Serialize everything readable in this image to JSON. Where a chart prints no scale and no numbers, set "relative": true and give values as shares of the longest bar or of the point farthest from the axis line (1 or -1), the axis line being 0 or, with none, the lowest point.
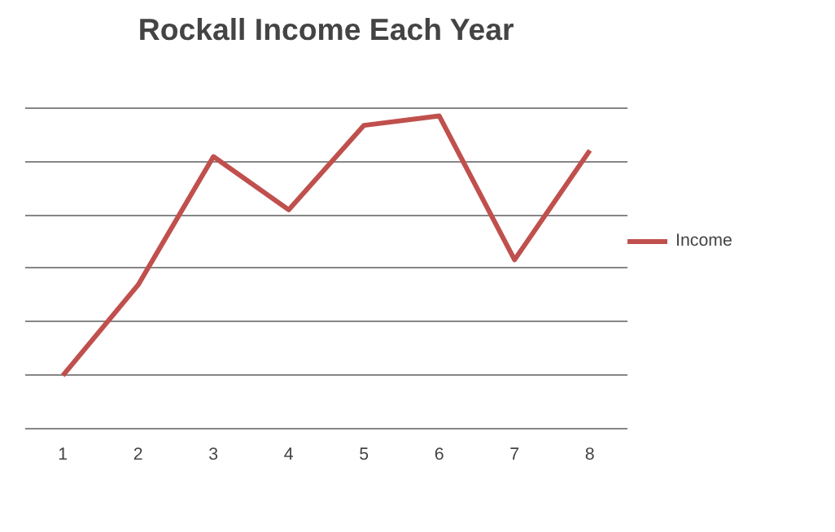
{
  "chart_data": {
    "type": "line",
    "title": "Rockall Income Each Year",
    "categories": [
      "1",
      "2",
      "3",
      "4",
      "5",
      "6",
      "7",
      "8"
    ],
    "relative": true,
    "series": [
      {
        "name": "Income",
        "color": "#c0504d",
        "values": [
          0.17,
          0.46,
          0.87,
          0.7,
          0.97,
          1,
          0.54,
          0.89
        ]
      }
    ],
    "grid": "y",
    "legend": "right",
    "marker": "none",
    "line_style": "solid"
  }
}
